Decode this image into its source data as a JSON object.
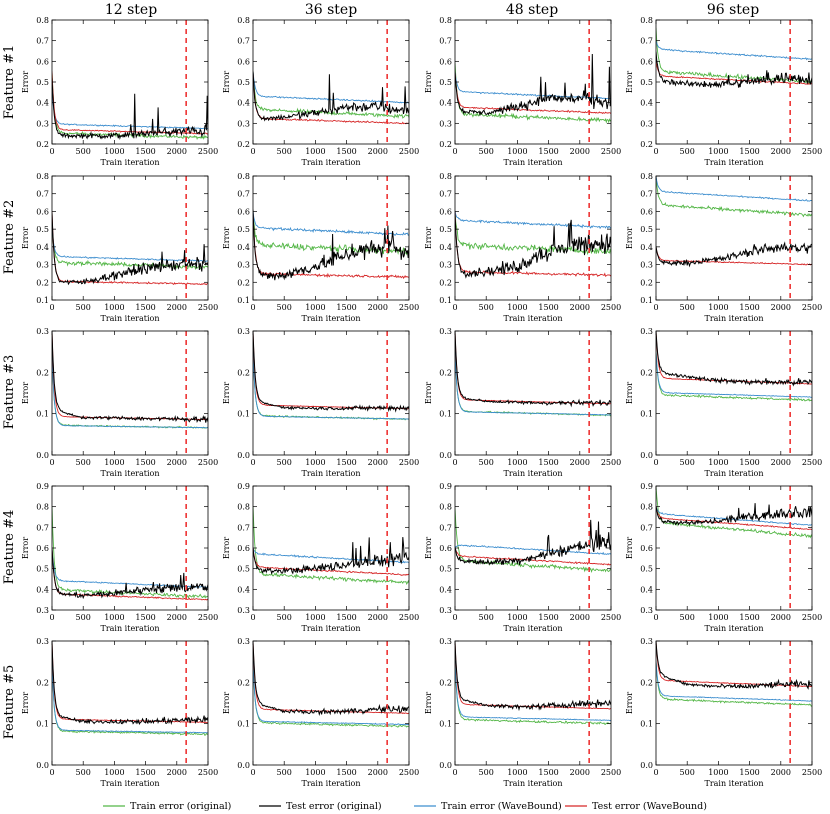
{
  "chart_data": {
    "type": "line",
    "columns": [
      "12 step",
      "36 step",
      "48 step",
      "96 step"
    ],
    "rows": [
      "Feature #1",
      "Feature #2",
      "Feature #3",
      "Feature #4",
      "Feature #5"
    ],
    "xlabel": "Train iteration",
    "ylabel": "Error",
    "xlim": [
      0,
      2500
    ],
    "xticks": [
      0,
      500,
      1000,
      1500,
      2000,
      2500
    ],
    "vline": 2150,
    "vline_color": "#ee3333",
    "series_styles": [
      {
        "name": "Train error (original)",
        "color": "#55b748"
      },
      {
        "name": "Test error (original)",
        "color": "#000000"
      },
      {
        "name": "Train error (WaveBound)",
        "color": "#3f8fcf"
      },
      {
        "name": "Test error (WaveBound)",
        "color": "#d62728"
      }
    ],
    "row_axes": [
      {
        "ylim": [
          0.2,
          0.8
        ],
        "yticks": [
          0.2,
          0.3,
          0.4,
          0.5,
          0.6,
          0.7,
          0.8
        ]
      },
      {
        "ylim": [
          0.1,
          0.8
        ],
        "yticks": [
          0.1,
          0.2,
          0.3,
          0.4,
          0.5,
          0.6,
          0.7,
          0.8
        ]
      },
      {
        "ylim": [
          0.0,
          0.3
        ],
        "yticks": [
          0.0,
          0.1,
          0.2,
          0.3
        ]
      },
      {
        "ylim": [
          0.3,
          0.9
        ],
        "yticks": [
          0.3,
          0.4,
          0.5,
          0.6,
          0.7,
          0.8,
          0.9
        ]
      },
      {
        "ylim": [
          0.0,
          0.3
        ],
        "yticks": [
          0.0,
          0.1,
          0.2,
          0.3
        ]
      }
    ],
    "panels": [
      [
        {
          "start": [
            0.55,
            0.52,
            0.45,
            0.55
          ],
          "end": [
            0.235,
            0.28,
            0.275,
            0.25
          ],
          "test_trend": [
            0.24,
            0.24,
            0.24,
            0.25,
            0.26,
            0.265
          ],
          "spike": 0.2,
          "noise": 0.012
        },
        {
          "start": [
            0.55,
            0.55,
            0.55,
            0.55
          ],
          "end": [
            0.34,
            0.37,
            0.4,
            0.3
          ],
          "test_trend": [
            0.32,
            0.33,
            0.35,
            0.38,
            0.38,
            0.36
          ],
          "spike": 0.2,
          "noise": 0.015
        },
        {
          "start": [
            0.6,
            0.55,
            0.55,
            0.55
          ],
          "end": [
            0.32,
            0.4,
            0.42,
            0.35
          ],
          "test_trend": [
            0.36,
            0.35,
            0.38,
            0.42,
            0.42,
            0.4
          ],
          "spike": 0.22,
          "noise": 0.015
        },
        {
          "start": [
            0.75,
            0.65,
            0.7,
            0.6
          ],
          "end": [
            0.51,
            0.53,
            0.61,
            0.49
          ],
          "test_trend": [
            0.51,
            0.49,
            0.49,
            0.5,
            0.52,
            0.52
          ],
          "spike": 0.06,
          "noise": 0.015
        }
      ],
      [
        {
          "start": [
            0.5,
            0.6,
            0.5,
            0.6
          ],
          "end": [
            0.29,
            0.3,
            0.32,
            0.19
          ],
          "test_trend": [
            0.2,
            0.2,
            0.24,
            0.28,
            0.3,
            0.3
          ],
          "spike": 0.12,
          "noise": 0.018
        },
        {
          "start": [
            0.6,
            0.6,
            0.6,
            0.6
          ],
          "end": [
            0.38,
            0.38,
            0.47,
            0.23
          ],
          "test_trend": [
            0.24,
            0.24,
            0.29,
            0.36,
            0.39,
            0.38
          ],
          "spike": 0.15,
          "noise": 0.03
        },
        {
          "start": [
            0.6,
            0.6,
            0.6,
            0.6
          ],
          "end": [
            0.38,
            0.4,
            0.51,
            0.24
          ],
          "test_trend": [
            0.25,
            0.26,
            0.29,
            0.37,
            0.42,
            0.42
          ],
          "spike": 0.2,
          "noise": 0.03
        },
        {
          "start": [
            0.8,
            0.4,
            0.8,
            0.4
          ],
          "end": [
            0.59,
            0.39,
            0.66,
            0.3
          ],
          "test_trend": [
            0.31,
            0.31,
            0.33,
            0.37,
            0.4,
            0.39
          ],
          "spike": 0.12,
          "noise": 0.015
        }
      ],
      [
        {
          "start": [
            0.25,
            0.3,
            0.25,
            0.3
          ],
          "end": [
            0.067,
            0.087,
            0.066,
            0.086
          ],
          "test_trend": [
            0.11,
            0.09,
            0.09,
            0.088,
            0.087,
            0.087
          ],
          "spike": 0.0,
          "noise": 0.003
        },
        {
          "start": [
            0.25,
            0.3,
            0.25,
            0.3
          ],
          "end": [
            0.088,
            0.113,
            0.087,
            0.112
          ],
          "test_trend": [
            0.13,
            0.115,
            0.113,
            0.113,
            0.114,
            0.114
          ],
          "spike": 0.0,
          "noise": 0.003
        },
        {
          "start": [
            0.25,
            0.3,
            0.25,
            0.3
          ],
          "end": [
            0.098,
            0.126,
            0.097,
            0.124
          ],
          "test_trend": [
            0.14,
            0.13,
            0.127,
            0.126,
            0.126,
            0.127
          ],
          "spike": 0.0,
          "noise": 0.003
        },
        {
          "start": [
            0.25,
            0.3,
            0.25,
            0.3
          ],
          "end": [
            0.135,
            0.175,
            0.14,
            0.172
          ],
          "test_trend": [
            0.2,
            0.19,
            0.18,
            0.177,
            0.176,
            0.176
          ],
          "spike": 0.0,
          "noise": 0.004
        }
      ],
      [
        {
          "start": [
            0.8,
            0.6,
            0.6,
            0.6
          ],
          "end": [
            0.37,
            0.4,
            0.41,
            0.35
          ],
          "test_trend": [
            0.38,
            0.37,
            0.38,
            0.4,
            0.41,
            0.41
          ],
          "spike": 0.07,
          "noise": 0.013
        },
        {
          "start": [
            0.8,
            0.6,
            0.6,
            0.6
          ],
          "end": [
            0.44,
            0.53,
            0.53,
            0.47
          ],
          "test_trend": [
            0.49,
            0.49,
            0.5,
            0.52,
            0.54,
            0.54
          ],
          "spike": 0.12,
          "noise": 0.015
        },
        {
          "start": [
            0.8,
            0.6,
            0.6,
            0.6
          ],
          "end": [
            0.5,
            0.6,
            0.57,
            0.52
          ],
          "test_trend": [
            0.54,
            0.53,
            0.54,
            0.57,
            0.61,
            0.62
          ],
          "spike": 0.12,
          "noise": 0.015
        },
        {
          "start": [
            0.9,
            0.8,
            0.8,
            0.8
          ],
          "end": [
            0.67,
            0.76,
            0.71,
            0.69
          ],
          "test_trend": [
            0.73,
            0.72,
            0.73,
            0.75,
            0.77,
            0.77
          ],
          "spike": 0.05,
          "noise": 0.012
        }
      ],
      [
        {
          "start": [
            0.25,
            0.3,
            0.25,
            0.3
          ],
          "end": [
            0.076,
            0.105,
            0.078,
            0.103
          ],
          "test_trend": [
            0.12,
            0.105,
            0.105,
            0.105,
            0.108,
            0.11
          ],
          "spike": 0.0,
          "noise": 0.004
        },
        {
          "start": [
            0.25,
            0.3,
            0.25,
            0.3
          ],
          "end": [
            0.095,
            0.128,
            0.098,
            0.125
          ],
          "test_trend": [
            0.15,
            0.13,
            0.128,
            0.13,
            0.135,
            0.135
          ],
          "spike": 0.0,
          "noise": 0.004
        },
        {
          "start": [
            0.25,
            0.3,
            0.25,
            0.3
          ],
          "end": [
            0.102,
            0.147,
            0.108,
            0.136
          ],
          "test_trend": [
            0.16,
            0.145,
            0.14,
            0.143,
            0.148,
            0.15
          ],
          "spike": 0.0,
          "noise": 0.004
        },
        {
          "start": [
            0.25,
            0.3,
            0.25,
            0.3
          ],
          "end": [
            0.148,
            0.195,
            0.155,
            0.19
          ],
          "test_trend": [
            0.22,
            0.195,
            0.19,
            0.19,
            0.195,
            0.195
          ],
          "spike": 0.0,
          "noise": 0.004
        }
      ]
    ]
  }
}
